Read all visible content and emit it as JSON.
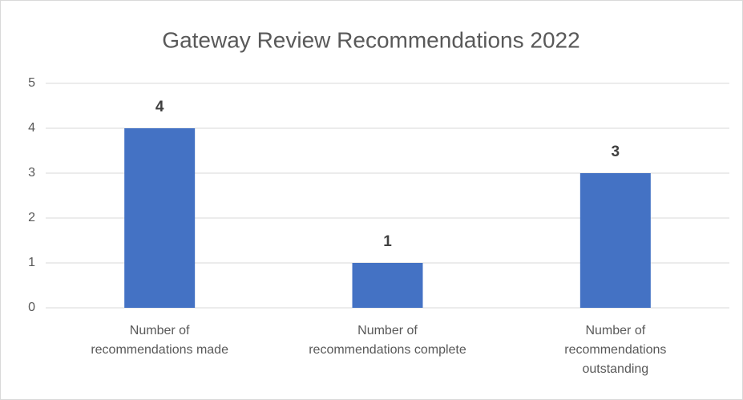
{
  "chart_data": {
    "type": "bar",
    "title": "Gateway Review Recommendations 2022",
    "categories": [
      "Number of recommendations made",
      "Number of recommendations complete",
      "Number of recommendations outstanding"
    ],
    "values": [
      4,
      1,
      3
    ],
    "color": "#4472c4",
    "ylim": [
      0,
      5
    ],
    "yticks": [
      0,
      1,
      2,
      3,
      4,
      5
    ],
    "grid": true
  }
}
